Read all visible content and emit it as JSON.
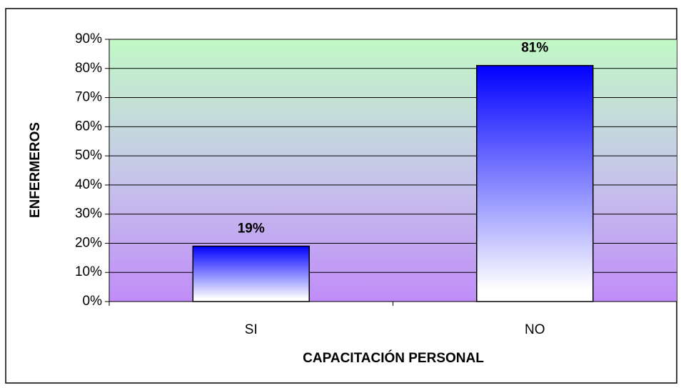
{
  "chart_data": {
    "type": "bar",
    "categories": [
      "SI",
      "NO"
    ],
    "values": [
      19,
      81
    ],
    "value_labels": [
      "19%",
      "81%"
    ],
    "color": "#0000ff",
    "xlabel": "CAPACITACIÓN PERSONAL",
    "ylabel": "ENFERMEROS",
    "ylim": [
      0,
      90
    ],
    "yticks": [
      {
        "value": 0,
        "label": "0%"
      },
      {
        "value": 10,
        "label": "10%"
      },
      {
        "value": 20,
        "label": "20%"
      },
      {
        "value": 30,
        "label": "30%"
      },
      {
        "value": 40,
        "label": "40%"
      },
      {
        "value": 50,
        "label": "50%"
      },
      {
        "value": 60,
        "label": "60%"
      },
      {
        "value": 70,
        "label": "70%"
      },
      {
        "value": 80,
        "label": "80%"
      },
      {
        "value": 90,
        "label": "90%"
      }
    ],
    "grid": true
  }
}
